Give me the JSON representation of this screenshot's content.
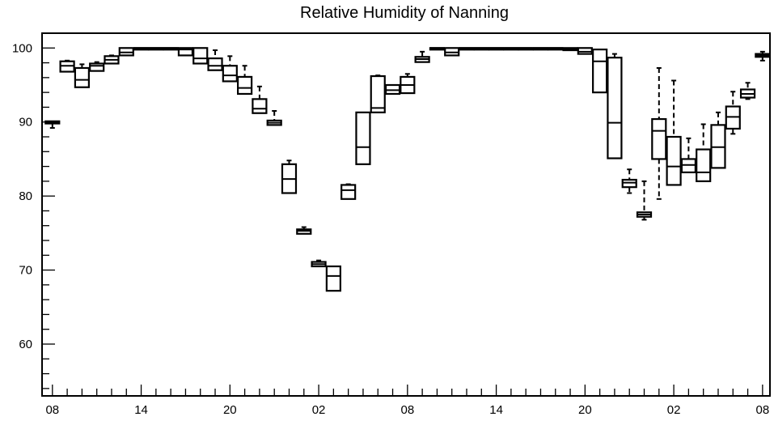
{
  "chart_data": {
    "type": "box",
    "title": "Relative Humidity of Nanning",
    "xlabel": "",
    "ylabel": "",
    "x_unit": "hour index (0 = first 08 tick, 1 per hour)",
    "xlim": [
      -0.7,
      48.5
    ],
    "ylim": [
      53,
      102
    ],
    "y_ticks": [
      60,
      70,
      80,
      90,
      100
    ],
    "y_minor_step": 2,
    "x_ticks": [
      {
        "x": 0,
        "label": "08"
      },
      {
        "x": 6,
        "label": "14"
      },
      {
        "x": 12,
        "label": "20"
      },
      {
        "x": 18,
        "label": "02"
      },
      {
        "x": 24,
        "label": "08"
      },
      {
        "x": 30,
        "label": "14"
      },
      {
        "x": 36,
        "label": "20"
      },
      {
        "x": 42,
        "label": "02"
      },
      {
        "x": 48,
        "label": "08"
      }
    ],
    "grid": false,
    "boxes": [
      {
        "x": 0,
        "min": 89.2,
        "q1": 89.8,
        "median": 90.0,
        "q3": 90.1,
        "max": 90.1
      },
      {
        "x": 1,
        "min": 96.8,
        "q1": 96.8,
        "median": 97.6,
        "q3": 98.2,
        "max": 98.3
      },
      {
        "x": 2,
        "min": 94.7,
        "q1": 94.7,
        "median": 95.7,
        "q3": 97.3,
        "max": 97.8
      },
      {
        "x": 3,
        "min": 96.9,
        "q1": 96.9,
        "median": 97.6,
        "q3": 97.9,
        "max": 98.1
      },
      {
        "x": 4,
        "min": 97.9,
        "q1": 97.9,
        "median": 98.4,
        "q3": 98.9,
        "max": 99.0
      },
      {
        "x": 5,
        "min": 99.0,
        "q1": 99.0,
        "median": 99.4,
        "q3": 100.0,
        "max": 100.0
      },
      {
        "x": 6,
        "min": 100,
        "q1": 100,
        "median": 100,
        "q3": 100,
        "max": 100
      },
      {
        "x": 7,
        "min": 100,
        "q1": 100,
        "median": 100,
        "q3": 100,
        "max": 100
      },
      {
        "x": 8,
        "min": 100,
        "q1": 100,
        "median": 100,
        "q3": 100,
        "max": 100
      },
      {
        "x": 9,
        "min": 99.0,
        "q1": 99.0,
        "median": 99.8,
        "q3": 100.0,
        "max": 100.0
      },
      {
        "x": 10,
        "min": 97.9,
        "q1": 97.9,
        "median": 98.6,
        "q3": 100.0,
        "max": 100.0
      },
      {
        "x": 11,
        "min": 97.0,
        "q1": 97.0,
        "median": 97.6,
        "q3": 98.6,
        "max": 99.7
      },
      {
        "x": 12,
        "min": 95.5,
        "q1": 95.5,
        "median": 96.3,
        "q3": 97.6,
        "max": 98.9
      },
      {
        "x": 13,
        "min": 93.8,
        "q1": 93.8,
        "median": 94.6,
        "q3": 96.1,
        "max": 97.6
      },
      {
        "x": 14,
        "min": 91.2,
        "q1": 91.2,
        "median": 91.8,
        "q3": 93.1,
        "max": 94.8
      },
      {
        "x": 15,
        "min": 89.6,
        "q1": 89.6,
        "median": 89.9,
        "q3": 90.2,
        "max": 91.5
      },
      {
        "x": 16,
        "min": 80.4,
        "q1": 80.4,
        "median": 82.3,
        "q3": 84.3,
        "max": 84.8
      },
      {
        "x": 17,
        "min": 74.9,
        "q1": 74.9,
        "median": 75.3,
        "q3": 75.5,
        "max": 75.8
      },
      {
        "x": 18,
        "min": 70.5,
        "q1": 70.5,
        "median": 70.8,
        "q3": 71.1,
        "max": 71.3
      },
      {
        "x": 19,
        "min": 67.2,
        "q1": 67.2,
        "median": 69.2,
        "q3": 70.5,
        "max": 70.5
      },
      {
        "x": 20,
        "min": 79.6,
        "q1": 79.6,
        "median": 80.8,
        "q3": 81.5,
        "max": 81.6
      },
      {
        "x": 21,
        "min": 84.3,
        "q1": 84.3,
        "median": 86.6,
        "q3": 91.3,
        "max": 91.3
      },
      {
        "x": 22,
        "min": 91.3,
        "q1": 91.3,
        "median": 91.9,
        "q3": 96.2,
        "max": 96.3
      },
      {
        "x": 23,
        "min": 93.8,
        "q1": 93.8,
        "median": 94.3,
        "q3": 95.0,
        "max": 95.0
      },
      {
        "x": 24,
        "min": 93.9,
        "q1": 93.9,
        "median": 95.0,
        "q3": 96.1,
        "max": 96.5
      },
      {
        "x": 25,
        "min": 98.1,
        "q1": 98.1,
        "median": 98.5,
        "q3": 98.8,
        "max": 99.5
      },
      {
        "x": 26,
        "min": 99.9,
        "q1": 99.9,
        "median": 100,
        "q3": 100,
        "max": 100
      },
      {
        "x": 27,
        "min": 99.0,
        "q1": 99.0,
        "median": 99.4,
        "q3": 100.0,
        "max": 100.0
      },
      {
        "x": 28,
        "min": 100,
        "q1": 100,
        "median": 100,
        "q3": 100,
        "max": 100
      },
      {
        "x": 29,
        "min": 100,
        "q1": 100,
        "median": 100,
        "q3": 100,
        "max": 100
      },
      {
        "x": 30,
        "min": 100,
        "q1": 100,
        "median": 100,
        "q3": 100,
        "max": 100
      },
      {
        "x": 31,
        "min": 100,
        "q1": 100,
        "median": 100,
        "q3": 100,
        "max": 100
      },
      {
        "x": 32,
        "min": 100,
        "q1": 100,
        "median": 100,
        "q3": 100,
        "max": 100
      },
      {
        "x": 33,
        "min": 100,
        "q1": 100,
        "median": 100,
        "q3": 100,
        "max": 100
      },
      {
        "x": 34,
        "min": 99.8,
        "q1": 99.8,
        "median": 100,
        "q3": 100,
        "max": 100
      },
      {
        "x": 35,
        "min": 99.7,
        "q1": 99.7,
        "median": 99.9,
        "q3": 100,
        "max": 100
      },
      {
        "x": 36,
        "min": 99.2,
        "q1": 99.2,
        "median": 99.5,
        "q3": 100,
        "max": 100
      },
      {
        "x": 37,
        "min": 94.0,
        "q1": 94.0,
        "median": 98.2,
        "q3": 99.8,
        "max": 99.8
      },
      {
        "x": 38,
        "min": 85.1,
        "q1": 85.1,
        "median": 89.9,
        "q3": 98.7,
        "max": 99.2
      },
      {
        "x": 39,
        "min": 80.4,
        "q1": 81.2,
        "median": 81.8,
        "q3": 82.2,
        "max": 83.6
      },
      {
        "x": 40,
        "min": 76.8,
        "q1": 77.2,
        "median": 77.5,
        "q3": 77.8,
        "max": 82.0
      },
      {
        "x": 41,
        "min": 79.6,
        "q1": 85.0,
        "median": 88.8,
        "q3": 90.4,
        "max": 97.3
      },
      {
        "x": 42,
        "min": 81.5,
        "q1": 81.5,
        "median": 84.0,
        "q3": 88.0,
        "max": 95.6
      },
      {
        "x": 43,
        "min": 83.2,
        "q1": 83.2,
        "median": 84.2,
        "q3": 85.0,
        "max": 87.8
      },
      {
        "x": 44,
        "min": 82.0,
        "q1": 82.0,
        "median": 83.2,
        "q3": 86.3,
        "max": 89.7
      },
      {
        "x": 45,
        "min": 83.8,
        "q1": 83.8,
        "median": 86.6,
        "q3": 89.6,
        "max": 91.3
      },
      {
        "x": 46,
        "min": 88.4,
        "q1": 89.1,
        "median": 90.7,
        "q3": 92.1,
        "max": 94.1
      },
      {
        "x": 47,
        "min": 93.1,
        "q1": 93.3,
        "median": 93.8,
        "q3": 94.4,
        "max": 95.3
      },
      {
        "x": 48,
        "min": 98.3,
        "q1": 98.8,
        "median": 99.0,
        "q3": 99.2,
        "max": 99.5
      }
    ]
  }
}
